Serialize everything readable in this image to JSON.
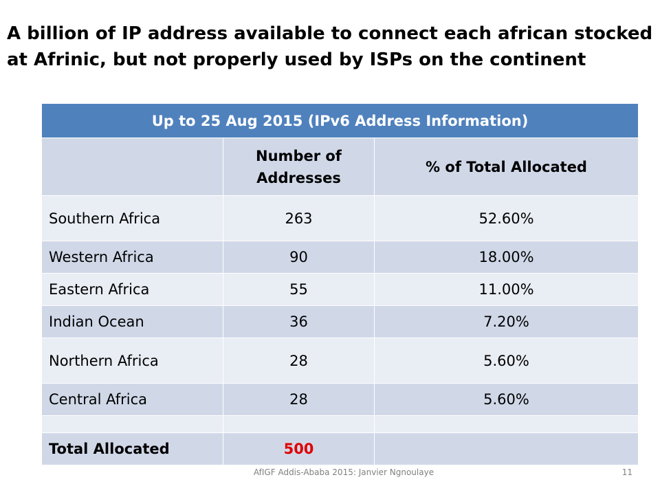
{
  "slide": {
    "title": "A billion of IP address available to connect each african stocked at Afrinic, but not properly used by ISPs on the continent",
    "footer": "AfIGF Addis-Ababa 2015: Janvier Ngnoulaye",
    "page_number": "11"
  },
  "table": {
    "caption": "Up to 25 Aug 2015 (IPv6 Address Information)",
    "headers": [
      "",
      "Number of Addresses",
      "% of Total Allocated"
    ],
    "rows": [
      {
        "region": "Southern Africa",
        "count": "263",
        "percent": "52.60%"
      },
      {
        "region": "Western Africa",
        "count": "90",
        "percent": "18.00%"
      },
      {
        "region": "Eastern Africa",
        "count": "55",
        "percent": "11.00%"
      },
      {
        "region": "Indian Ocean",
        "count": "36",
        "percent": "7.20%"
      },
      {
        "region": "Northern Africa",
        "count": "28",
        "percent": "5.60%"
      },
      {
        "region": "Central Africa",
        "count": "28",
        "percent": "5.60%"
      }
    ],
    "total": {
      "label": "Total Allocated",
      "count": "500",
      "percent": ""
    }
  },
  "colors": {
    "header": "#4f81bd",
    "row_dark": "#d0d8e8",
    "row_light": "#e9edf4",
    "total_value": "#e00000"
  }
}
